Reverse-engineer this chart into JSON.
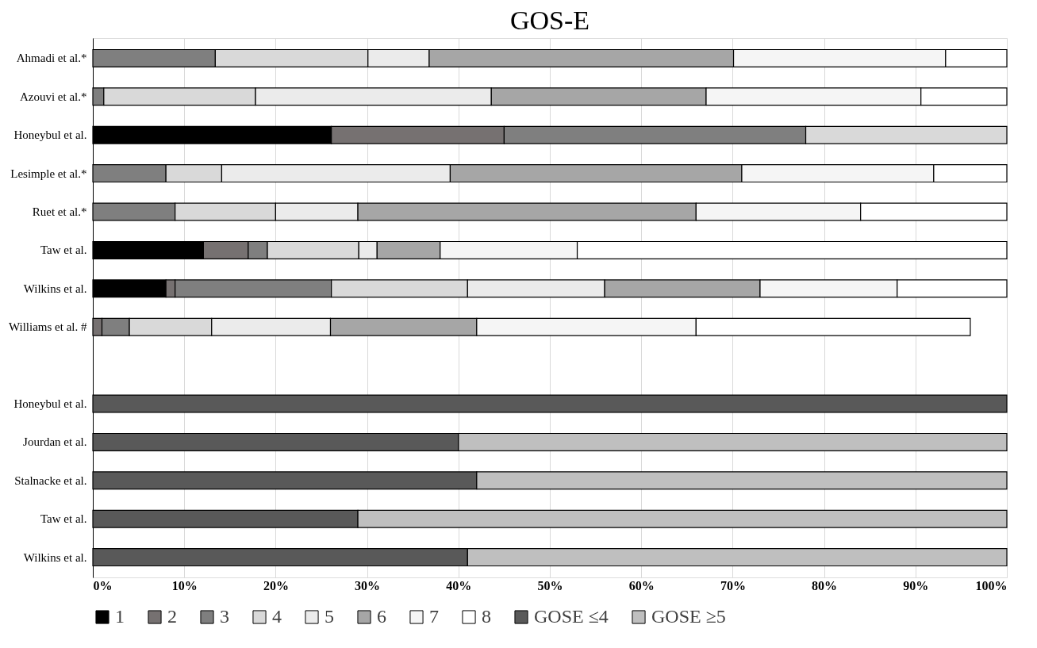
{
  "chart_data": {
    "type": "bar",
    "orientation": "horizontal",
    "stacked": true,
    "title": "GOS-E",
    "categories": [
      "Ahmadi et al.*",
      "Azouvi et al.*",
      "Honeybul et al.",
      "Lesimple et al.*",
      "Ruet et al.*",
      "Taw et al.",
      "Wilkins et al.",
      "Williams et al. #",
      null,
      "Honeybul et al.",
      "Jourdan et al.",
      "Stalnacke et al.",
      "Taw et al.",
      "Wilkins et al."
    ],
    "series": [
      {
        "name": "1",
        "color": "#000000",
        "values": [
          null,
          null,
          26.1,
          null,
          null,
          12.1,
          8,
          null,
          null,
          null,
          null,
          null,
          null,
          null
        ]
      },
      {
        "name": "2",
        "color": "#767171",
        "values": [
          null,
          null,
          18.9,
          null,
          null,
          4.9,
          1,
          1,
          null,
          null,
          null,
          null,
          null,
          null
        ]
      },
      {
        "name": "3",
        "color": "#7f7f7f",
        "values": [
          13.4,
          1.2,
          33,
          8,
          9,
          2.1,
          17.1,
          3,
          null,
          null,
          null,
          null,
          null,
          null
        ]
      },
      {
        "name": "4",
        "color": "#d9d9d9",
        "values": [
          16.7,
          16.6,
          22,
          6.1,
          11,
          10,
          14.9,
          9,
          null,
          null,
          null,
          null,
          null,
          null
        ]
      },
      {
        "name": "5",
        "color": "#ebebeb",
        "values": [
          6.7,
          25.8,
          null,
          25,
          9,
          2,
          15,
          13,
          null,
          null,
          null,
          null,
          null,
          null
        ]
      },
      {
        "name": "6",
        "color": "#a6a6a6",
        "values": [
          33.3,
          23.5,
          null,
          31.9,
          37,
          6.9,
          17,
          16,
          null,
          null,
          null,
          null,
          null,
          null
        ]
      },
      {
        "name": "7",
        "color": "#f5f5f5",
        "values": [
          23.2,
          23.5,
          null,
          21,
          18,
          15,
          15,
          24,
          null,
          null,
          null,
          null,
          null,
          null
        ]
      },
      {
        "name": "8",
        "color": "#ffffff",
        "values": [
          6.7,
          9.4,
          null,
          8,
          16,
          47,
          12,
          30,
          null,
          null,
          null,
          null,
          null,
          null
        ]
      },
      {
        "name": "GOSE ≤4",
        "color": "#595959",
        "values": [
          null,
          null,
          null,
          null,
          null,
          null,
          null,
          null,
          null,
          100,
          40,
          42,
          29,
          41
        ]
      },
      {
        "name": "GOSE ≥5",
        "color": "#bfbfbf",
        "values": [
          null,
          null,
          null,
          null,
          null,
          null,
          null,
          null,
          null,
          null,
          60,
          58,
          71,
          59
        ]
      }
    ],
    "xlim": [
      0,
      100
    ],
    "xticks": [
      {
        "value": 0,
        "label": "0%"
      },
      {
        "value": 10,
        "label": "10%"
      },
      {
        "value": 20,
        "label": "20%"
      },
      {
        "value": 30,
        "label": "30%"
      },
      {
        "value": 40,
        "label": "40%"
      },
      {
        "value": 50,
        "label": "50%"
      },
      {
        "value": 60,
        "label": "60%"
      },
      {
        "value": 70,
        "label": "70%"
      },
      {
        "value": 80,
        "label": "80%"
      },
      {
        "value": 90,
        "label": "90%"
      },
      {
        "value": 100,
        "label": "100%"
      }
    ],
    "grid": "x",
    "legend": "bottom"
  }
}
